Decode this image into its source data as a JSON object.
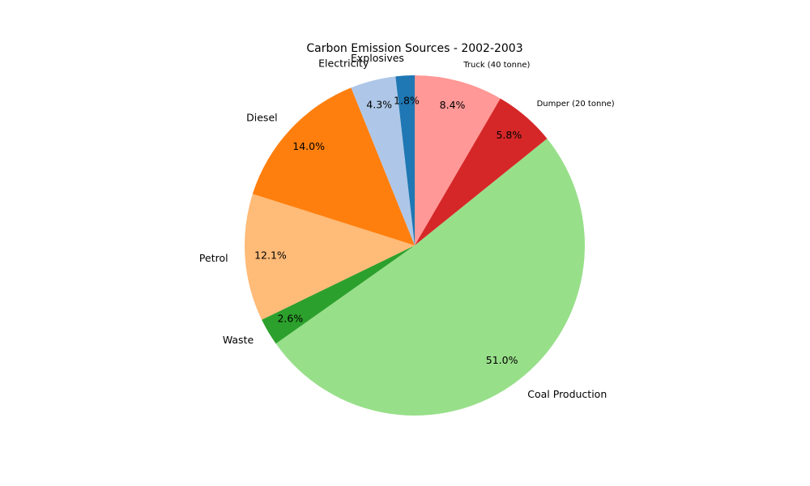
{
  "chart_data": {
    "type": "pie",
    "title": "Carbon Emission Sources - 2002-2003",
    "slices": [
      {
        "label": "Truck (40 tonne)",
        "value": 8.4,
        "pct_label": "8.4%",
        "color": "#ff9896"
      },
      {
        "label": "Dumper (20 tonne)",
        "value": 5.8,
        "pct_label": "5.8%",
        "color": "#d62728"
      },
      {
        "label": "Coal Production",
        "value": 51.0,
        "pct_label": "51.0%",
        "color": "#98df8a"
      },
      {
        "label": "Waste",
        "value": 2.6,
        "pct_label": "2.6%",
        "color": "#2ca02c"
      },
      {
        "label": "Petrol",
        "value": 12.1,
        "pct_label": "12.1%",
        "color": "#ffbb78"
      },
      {
        "label": "Diesel",
        "value": 14.0,
        "pct_label": "14.0%",
        "color": "#ff7f0e"
      },
      {
        "label": "Electricity",
        "value": 4.3,
        "pct_label": "4.3%",
        "color": "#aec7e8"
      },
      {
        "label": "Explosives",
        "value": 1.8,
        "pct_label": "1.8%",
        "color": "#1f77b4"
      }
    ],
    "start_angle_deg": 90,
    "direction": "clockwise"
  }
}
